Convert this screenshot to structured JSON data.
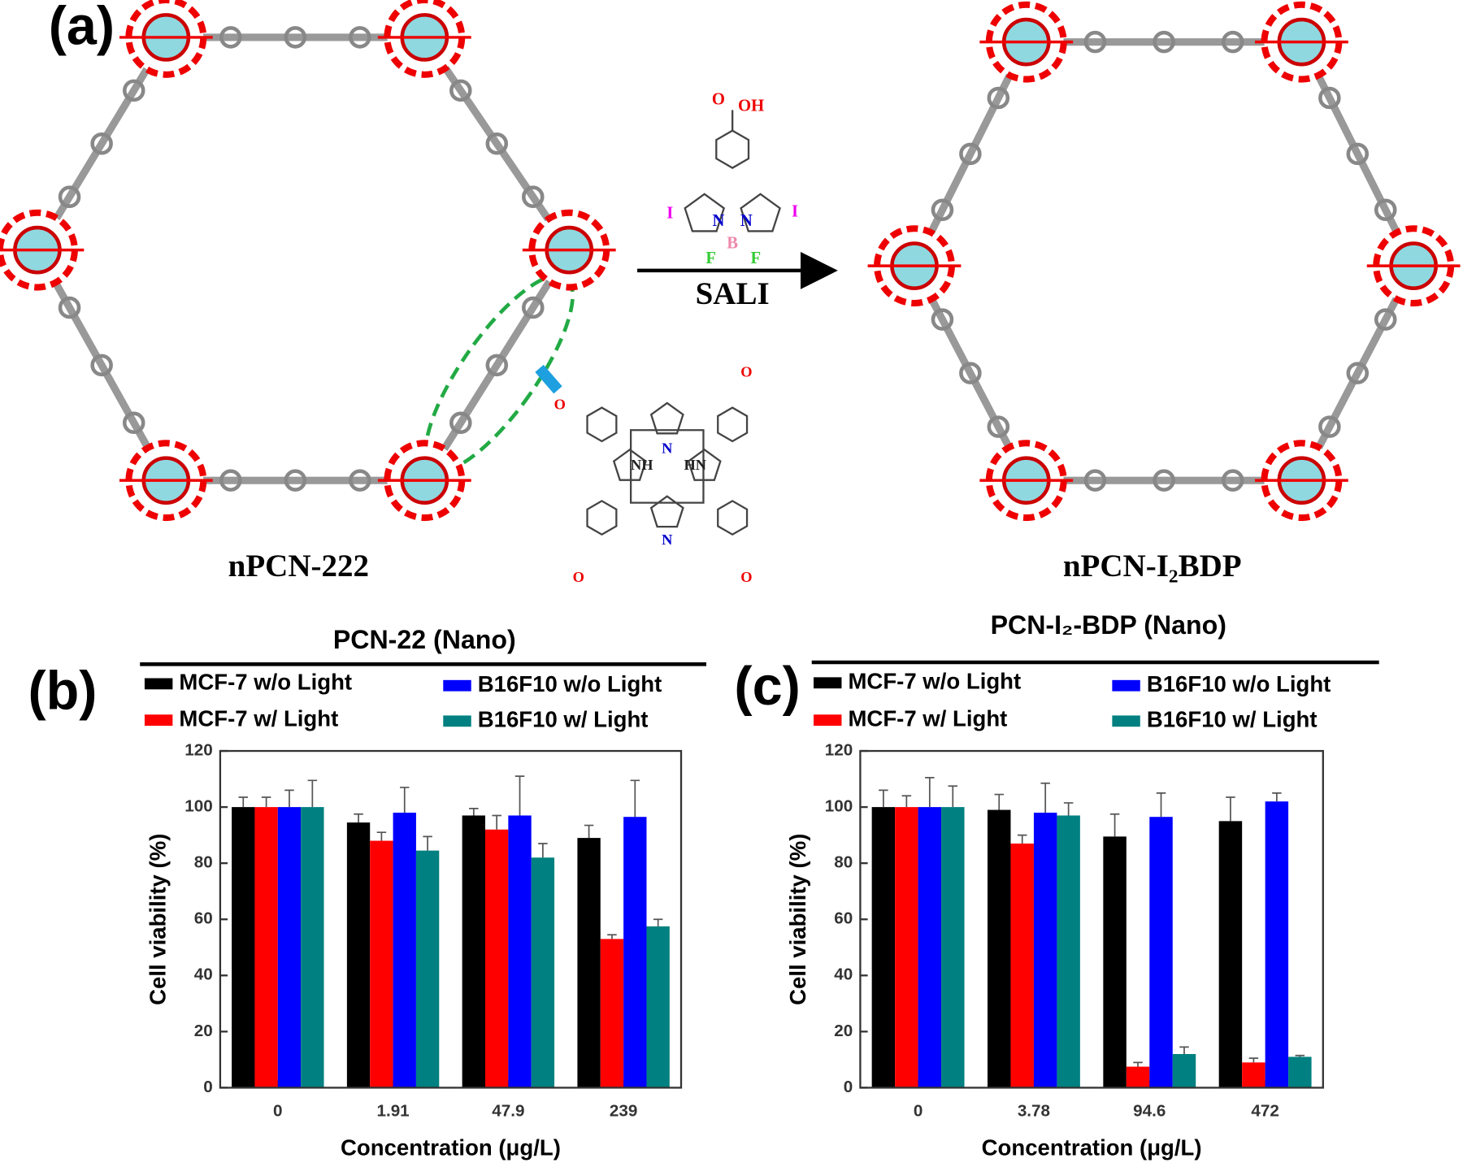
{
  "figure": {
    "panel_label": "(a)",
    "left_label": "nPCN-222",
    "arrow_label": "SALI",
    "right_label": "nPCN-I₂BDP",
    "reagent_atoms": [
      "O",
      "OH",
      "I",
      "N",
      "N",
      "I",
      "B",
      "F",
      "F"
    ],
    "linker_atoms": [
      "O",
      "O",
      "N",
      "NH",
      "HN",
      "N",
      "O",
      "O"
    ]
  },
  "chart_data": [
    {
      "type": "bar",
      "panel_label": "(b)",
      "title": "PCN-22 (Nano)",
      "xlabel": "Concentration (μg/L)",
      "ylabel": "Cell viability (%)",
      "categories": [
        "0",
        "1.91",
        "47.9",
        "239"
      ],
      "ylim": [
        0,
        120
      ],
      "yticks": [
        0,
        20,
        40,
        60,
        80,
        100,
        120
      ],
      "series": [
        {
          "name": "MCF-7 w/o Light",
          "color": "#000000",
          "values": [
            100,
            94.5,
            97,
            89
          ],
          "errors": [
            3.5,
            3,
            2.5,
            4.5
          ]
        },
        {
          "name": "MCF-7 w/ Light",
          "color": "#ff0000",
          "values": [
            100,
            88,
            92,
            53
          ],
          "errors": [
            3.5,
            3,
            5,
            1.5
          ]
        },
        {
          "name": "B16F10 w/o Light",
          "color": "#0000ff",
          "values": [
            100,
            98,
            97,
            96.5
          ],
          "errors": [
            6,
            9,
            14,
            13
          ]
        },
        {
          "name": "B16F10 w/ Light",
          "color": "#008080",
          "values": [
            100,
            84.5,
            82,
            57.5
          ],
          "errors": [
            9.5,
            5,
            5,
            2.5
          ]
        }
      ]
    },
    {
      "type": "bar",
      "panel_label": "(c)",
      "title": "PCN-I₂-BDP (Nano)",
      "xlabel": "Concentration (μg/L)",
      "ylabel": "Cell viability (%)",
      "categories": [
        "0",
        "3.78",
        "94.6",
        "472"
      ],
      "ylim": [
        0,
        120
      ],
      "yticks": [
        0,
        20,
        40,
        60,
        80,
        100,
        120
      ],
      "series": [
        {
          "name": "MCF-7 w/o Light",
          "color": "#000000",
          "values": [
            100,
            99,
            89.5,
            95
          ],
          "errors": [
            6,
            5.5,
            8,
            8.5
          ]
        },
        {
          "name": "MCF-7 w/ Light",
          "color": "#ff0000",
          "values": [
            100,
            87,
            7.5,
            9
          ],
          "errors": [
            4,
            3,
            1.5,
            1.5
          ]
        },
        {
          "name": "B16F10 w/o Light",
          "color": "#0000ff",
          "values": [
            100,
            98,
            96.5,
            102
          ],
          "errors": [
            10.5,
            10.5,
            8.5,
            3
          ]
        },
        {
          "name": "B16F10 w/ Light",
          "color": "#008080",
          "values": [
            100,
            97,
            12,
            11
          ],
          "errors": [
            7.5,
            4.5,
            2.5,
            0.5
          ]
        }
      ]
    }
  ]
}
